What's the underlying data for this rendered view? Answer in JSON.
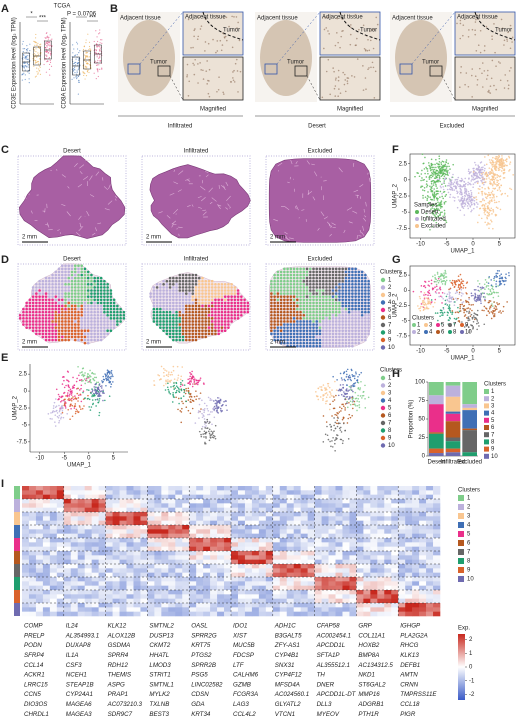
{
  "panels": {
    "A": {
      "label": "A",
      "title": "TCGA",
      "plots": [
        {
          "ylabel": "CD3E Expression level (log₂ TPM)",
          "annotations": [
            "*",
            "***"
          ]
        },
        {
          "ylabel": "CD8A Expression level (log₂ TPM)",
          "annotations": [
            "P = 0.0706",
            "***"
          ]
        }
      ]
    },
    "B": {
      "label": "B",
      "groups": [
        {
          "name": "Infiltrated",
          "adjacent": "Adjacent tissue",
          "tumor": "Tumor",
          "magnified": "Magnified"
        },
        {
          "name": "Desert",
          "adjacent": "Adjacent tissue",
          "tumor": "Tumor",
          "magnified": "Magnified"
        },
        {
          "name": "Excluded",
          "adjacent": "Adjacent tissue",
          "tumor": "Tumor",
          "magnified": "Magnified"
        }
      ]
    },
    "C": {
      "label": "C",
      "samples": [
        "Desert",
        "Infiltrated",
        "Excluded"
      ],
      "scale": "2 mm"
    },
    "D": {
      "label": "D",
      "samples": [
        "Desert",
        "Infiltrated",
        "Excluded"
      ],
      "scale": "2 mm",
      "legend_title": "Clusters"
    },
    "E": {
      "label": "E",
      "xlabel": "UMAP_1",
      "ylabel": "UMAP_2",
      "xlim": [
        -12,
        8
      ],
      "ylim": [
        -9,
        4
      ],
      "xticks": [
        -10,
        -5,
        0,
        5
      ],
      "yticks": [
        2.5,
        0,
        -2.5,
        -5,
        -7.5
      ],
      "legend_title": "Clusters"
    },
    "F": {
      "label": "F",
      "xlabel": "UMAP_1",
      "ylabel": "UMAP_2",
      "xlim": [
        -12,
        8
      ],
      "ylim": [
        -9,
        4
      ],
      "xticks": [
        -10,
        -5,
        0,
        5
      ],
      "yticks": [
        2.5,
        0,
        -2.5,
        -5,
        -7.5
      ],
      "legend_title": "Samples",
      "samples": [
        "Desert",
        "Infiltrated",
        "Excluded"
      ],
      "colors": [
        "#5cb85c",
        "#bfb1dc",
        "#f7c48e"
      ]
    },
    "G": {
      "label": "G",
      "xlabel": "UMAP_1",
      "ylabel": "UMAP_2",
      "xlim": [
        -12,
        8
      ],
      "ylim": [
        -9,
        4
      ],
      "xticks": [
        -10,
        -5,
        0,
        5
      ],
      "yticks": [
        2.5,
        0,
        -2.5,
        -5,
        -7.5
      ],
      "legend_title": "Clusters"
    },
    "H": {
      "label": "H",
      "type": "bar",
      "stacked": true,
      "ylabel": "Proportion (%)",
      "categories": [
        "Desert",
        "Infiltrated",
        "Excluded"
      ],
      "ylim": [
        0,
        100
      ],
      "yticks": [
        0,
        25,
        50,
        75,
        100
      ],
      "legend_title": "Clusters",
      "series": [
        {
          "name": "1",
          "values": [
            18,
            5,
            30
          ]
        },
        {
          "name": "2",
          "values": [
            12,
            15,
            5
          ]
        },
        {
          "name": "3",
          "values": [
            0,
            20,
            3
          ]
        },
        {
          "name": "4",
          "values": [
            0,
            3,
            25
          ]
        },
        {
          "name": "5",
          "values": [
            38,
            10,
            0
          ]
        },
        {
          "name": "6",
          "values": [
            2,
            22,
            2
          ]
        },
        {
          "name": "7",
          "values": [
            0,
            5,
            30
          ]
        },
        {
          "name": "8",
          "values": [
            20,
            10,
            5
          ]
        },
        {
          "name": "9",
          "values": [
            6,
            5,
            0
          ]
        },
        {
          "name": "10",
          "values": [
            4,
            5,
            0
          ]
        }
      ]
    },
    "I": {
      "label": "I",
      "legend_title": "Clusters",
      "colorbar_title": "Exp.",
      "colorbar_lim": [
        -2.4,
        2.4
      ],
      "colorbar_ticks": [
        2,
        1,
        0,
        -1,
        -2
      ],
      "genes": [
        [
          "COMP",
          "PRELP",
          "PODN",
          "SFRP4",
          "CCL14",
          "ACKR1",
          "LRRC15",
          "CCN5",
          "DIO3OS",
          "CHRDL1"
        ],
        [
          "IL24",
          "AL354993.1",
          "DUXAP8",
          "IL1A",
          "CSF3",
          "NCEH1",
          "STEAP1B",
          "CYP24A1",
          "MAGEA6",
          "MAGEA3"
        ],
        [
          "KLK12",
          "ALOX12B",
          "GSDMA",
          "SPRR4",
          "RDH12",
          "THEMIS",
          "ASPG",
          "PRAP1",
          "AC073210.3",
          "SDR9C7"
        ],
        [
          "SMTNL2",
          "DUSP13",
          "CKMT2",
          "HHATL",
          "LMOD3",
          "STRIT1",
          "SMTNL1",
          "MYLK2",
          "TXLNB",
          "BEST3"
        ],
        [
          "OASL",
          "SPRR2G",
          "KRT75",
          "PTGS2",
          "SPRR2B",
          "PSG5",
          "LINC02582",
          "CDSN",
          "GDA",
          "KRT34"
        ],
        [
          "IDO1",
          "XIST",
          "MUC5B",
          "FDCSP",
          "LTF",
          "CALHM6",
          "GZMB",
          "FCGR3A",
          "LAG3",
          "CCL4L2"
        ],
        [
          "ADH1C",
          "B3GALT5",
          "ZFY-AS1",
          "CYP4B1",
          "SNX31",
          "CYP4F12",
          "MFSD4A",
          "AC024560.1",
          "GLYATL2",
          "VTCN1"
        ],
        [
          "CFAP58",
          "AC002454.1",
          "APCDD1L",
          "SFTA1P",
          "AL355512.1",
          "TH",
          "DNER",
          "APCDD1L-DT",
          "DLL3",
          "MYEOV"
        ],
        [
          "GRP",
          "COL11A1",
          "HOXB2",
          "BMP8A",
          "AC134312.5",
          "NKD1",
          "ST6GAL2",
          "MMP16",
          "ADGRB1",
          "PTH1R"
        ],
        [
          "IGHGP",
          "PLA2G2A",
          "RHCG",
          "KLK13",
          "DEFB1",
          "AMTN",
          "CRNN",
          "TMPRSS11E",
          "CCL18",
          "PIGR"
        ]
      ]
    }
  },
  "clusters": {
    "names": [
      "1",
      "2",
      "3",
      "4",
      "5",
      "6",
      "7",
      "8",
      "9",
      "10"
    ],
    "colors": [
      "#7fcd8a",
      "#bcb1dc",
      "#f9c690",
      "#3f6fb5",
      "#ea2f8a",
      "#b5581f",
      "#666666",
      "#1f9e6e",
      "#d9622b",
      "#6f6bb0"
    ]
  }
}
